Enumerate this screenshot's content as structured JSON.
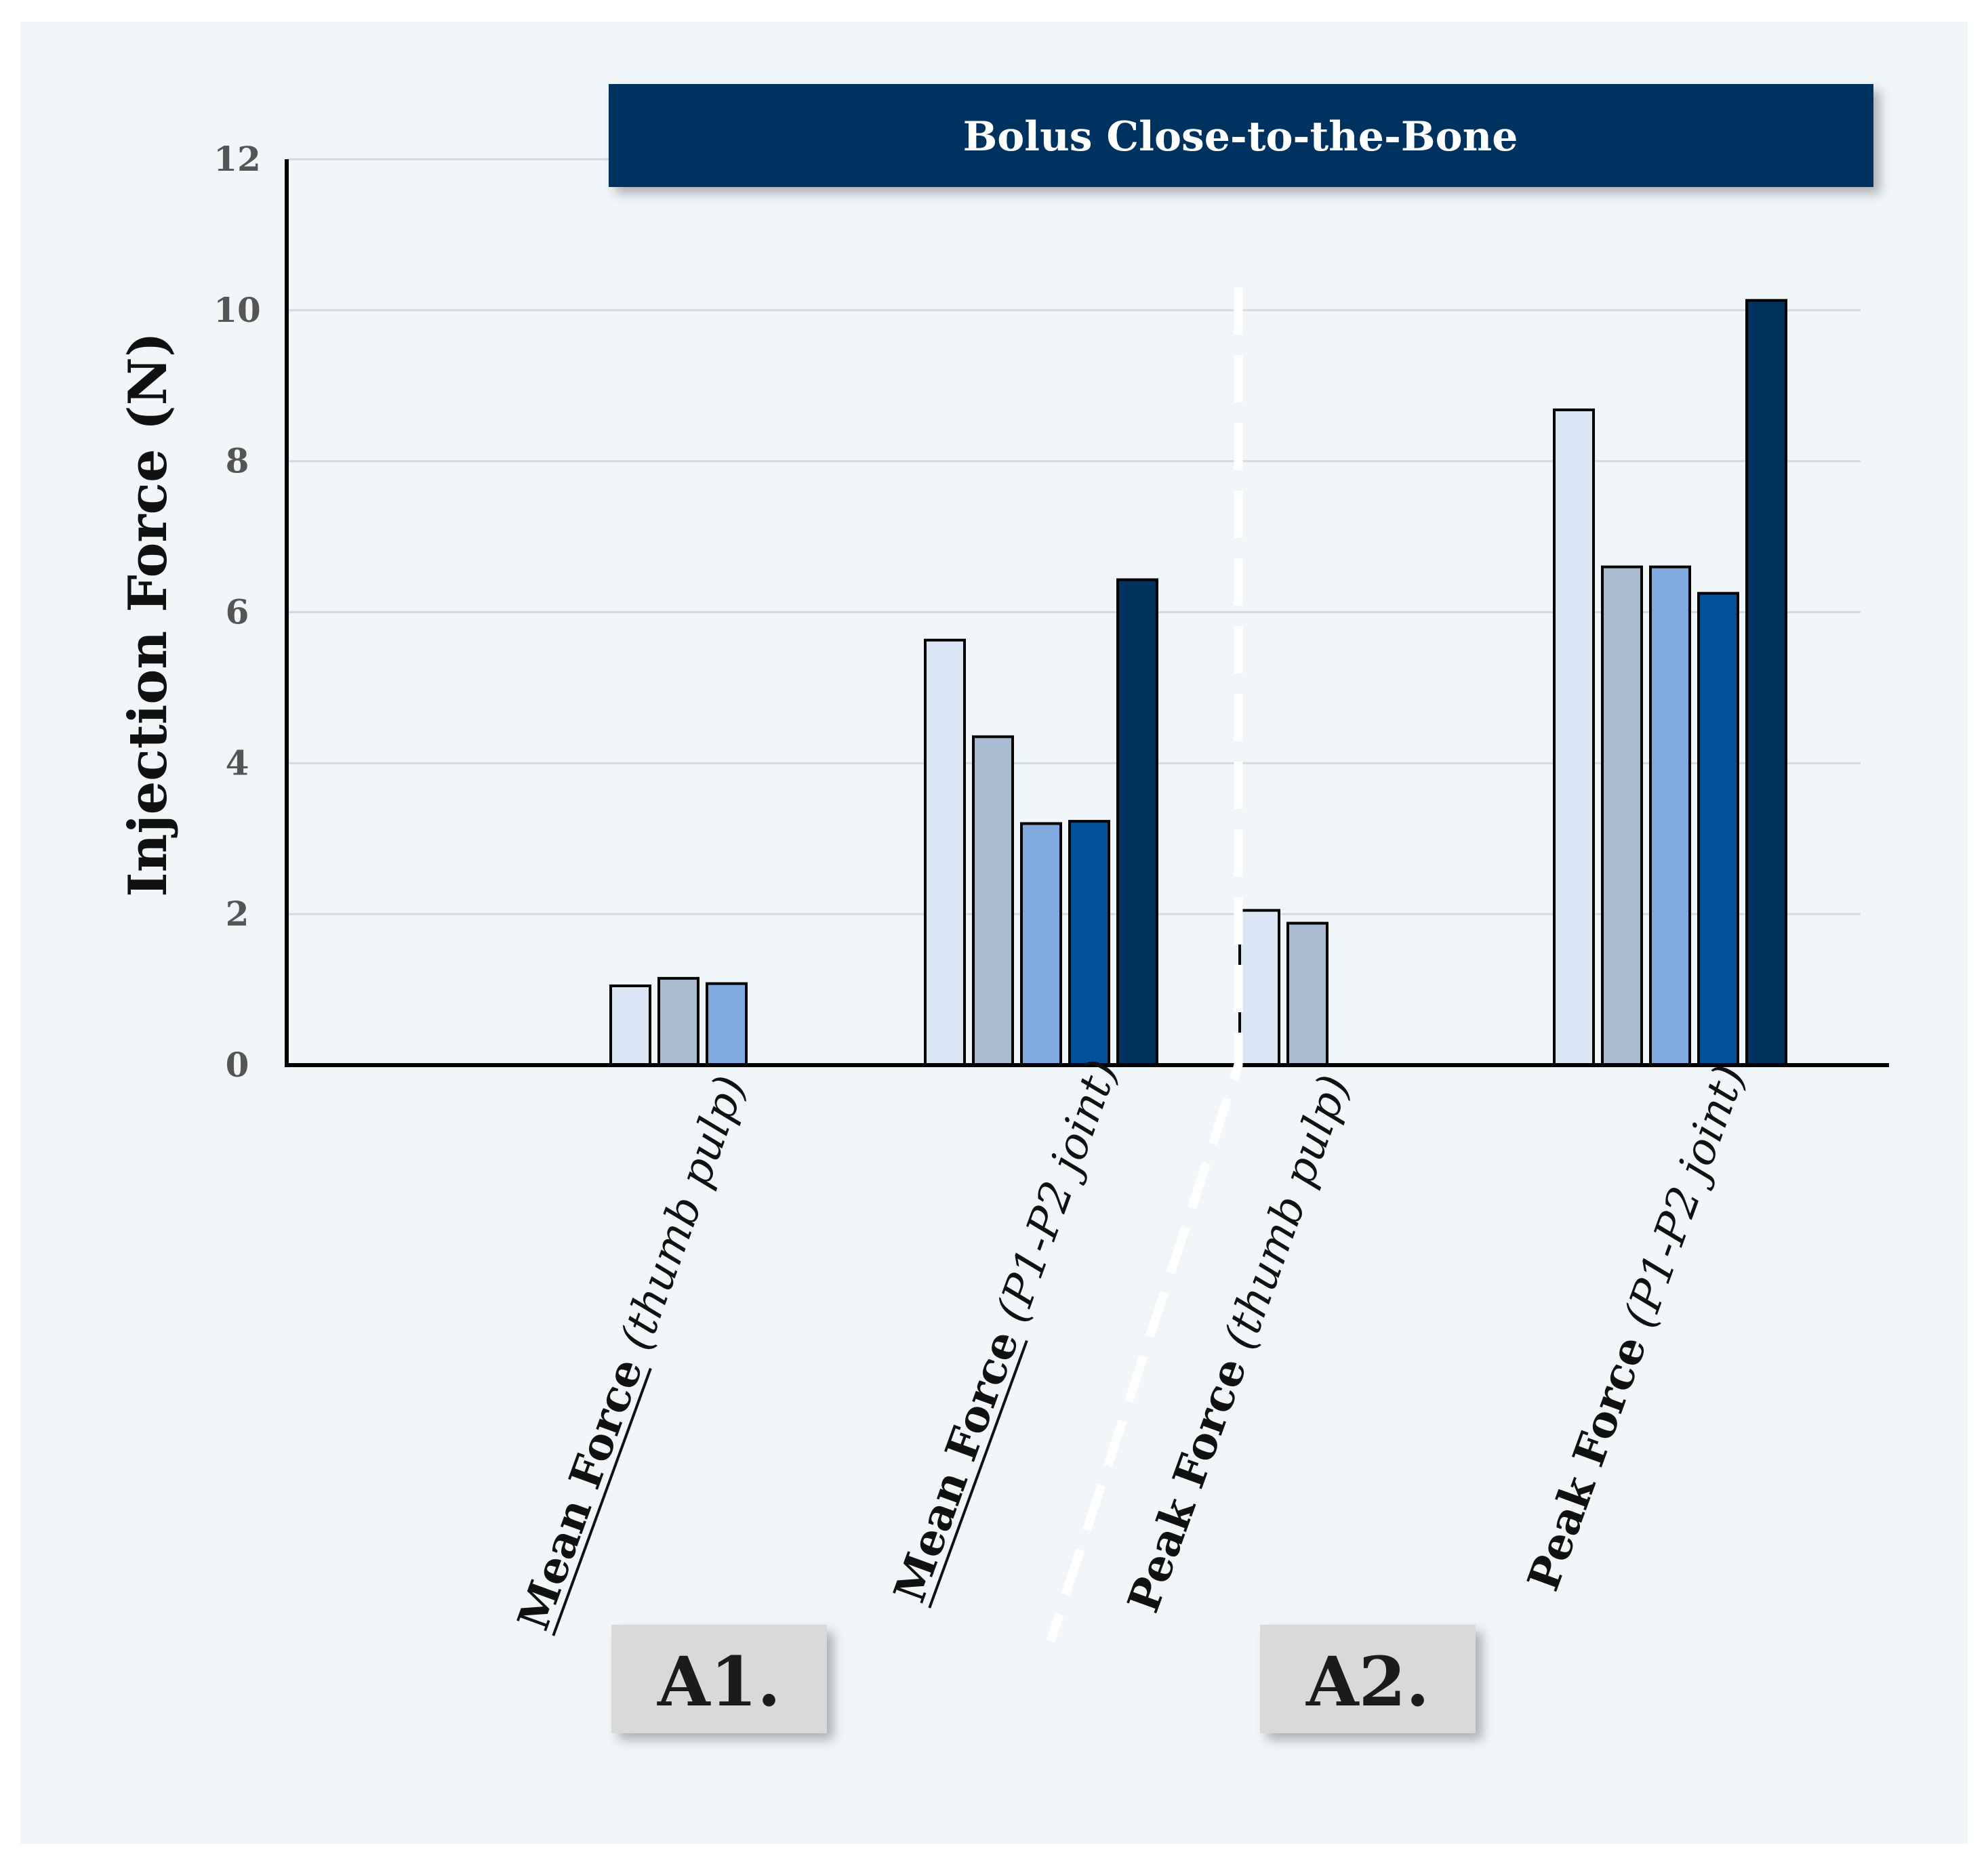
{
  "chart_data": {
    "type": "bar",
    "title": "Bolus Close-to-the-Bone",
    "ylabel": "Injection Force (N)",
    "ylim": [
      0,
      12
    ],
    "yticks": [
      "0",
      "2",
      "4",
      "6",
      "8",
      "10",
      "12"
    ],
    "grid": true,
    "legend": "none",
    "categories": [
      {
        "main": "Mean Force",
        "sub": "(thumb pulp)",
        "underline": true
      },
      {
        "main": "Mean Force",
        "sub": "(P1-P2 joint)",
        "underline": true
      },
      {
        "main": "Peak Force",
        "sub": "(thumb pulp)",
        "underline": false
      },
      {
        "main": "Peak Force",
        "sub": "(P1-P2 joint)",
        "underline": false
      }
    ],
    "bar_colors": [
      "#dae6f5",
      "#a9bbd1",
      "#7fa9df",
      "#03519a",
      "#02335f"
    ],
    "series": [
      {
        "values": [
          1.05,
          5.63,
          2.05,
          8.68
        ]
      },
      {
        "values": [
          1.15,
          4.35,
          1.88,
          6.6
        ]
      },
      {
        "values": [
          1.08,
          3.2,
          null,
          6.6
        ]
      },
      {
        "values": [
          null,
          3.23,
          null,
          6.25
        ]
      },
      {
        "values": [
          null,
          6.43,
          null,
          10.13
        ]
      }
    ],
    "sections": [
      "A1.",
      "A2."
    ]
  }
}
